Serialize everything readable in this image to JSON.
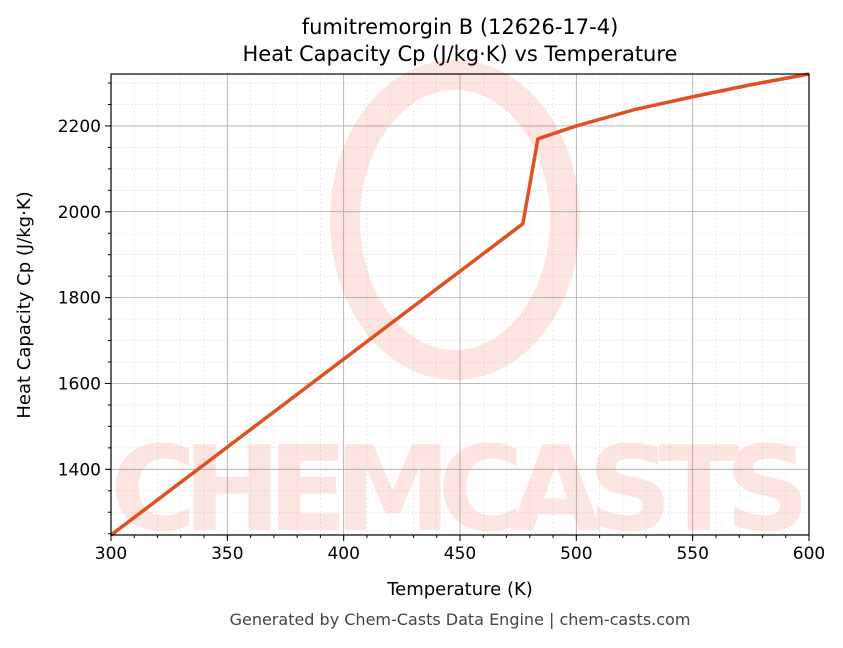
{
  "chart_data": {
    "type": "line",
    "title": "fumitremorgin B (12626-17-4)",
    "subtitle": "Heat Capacity Cp (J/kg·K) vs Temperature",
    "xlabel": "Temperature (K)",
    "ylabel": "Heat Capacity Cp (J/kg·K)",
    "xlim": [
      300,
      600
    ],
    "ylim": [
      1247,
      2321
    ],
    "xticks": [
      300,
      350,
      400,
      450,
      500,
      550,
      600
    ],
    "yticks": [
      1400,
      1600,
      1800,
      2000,
      2200
    ],
    "grid": true,
    "series": [
      {
        "color": "#e05020",
        "x": [
          300,
          477,
          483.5,
          500,
          525,
          550,
          575,
          600
        ],
        "y": [
          1247,
          1972,
          2170,
          2200,
          2238,
          2268,
          2296,
          2321
        ]
      }
    ],
    "watermark": "CHEMCASTS",
    "footer": "Generated by Chem-Casts Data Engine | chem-casts.com"
  }
}
